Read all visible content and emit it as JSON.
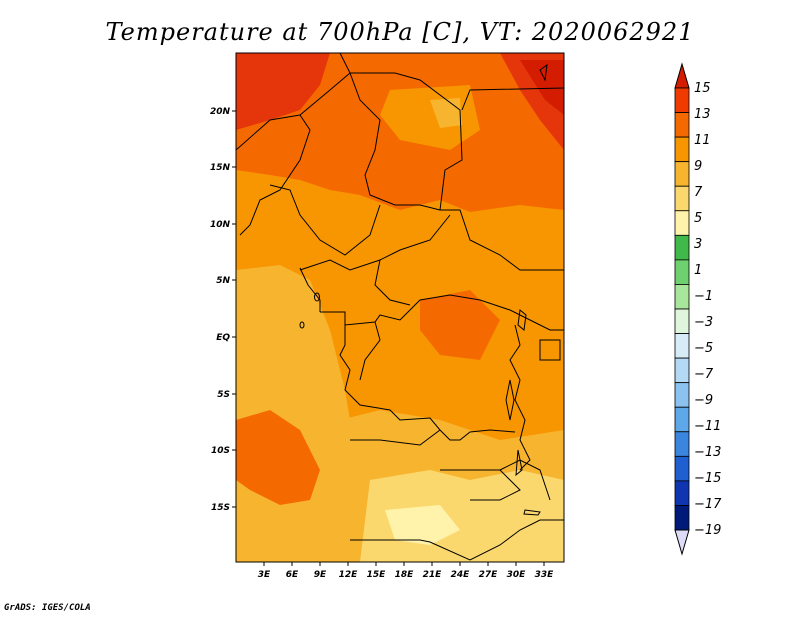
{
  "title": "Temperature at 700hPa [C], VT: 2020062921",
  "credit": "GrADS: IGES/COLA",
  "map": {
    "lat_ticks": [
      "20N",
      "15N",
      "10N",
      "5N",
      "EQ",
      "5S",
      "10S",
      "15S"
    ],
    "lon_ticks": [
      "3E",
      "6E",
      "9E",
      "12E",
      "15E",
      "18E",
      "21E",
      "24E",
      "27E",
      "30E",
      "33E"
    ]
  },
  "colorbar": {
    "labels": [
      "15",
      "13",
      "11",
      "9",
      "7",
      "5",
      "3",
      "1",
      "−1",
      "−3",
      "−5",
      "−7",
      "−9",
      "−11",
      "−13",
      "−15",
      "−17",
      "−19"
    ],
    "colors": [
      "#d41d00",
      "#ef3b00",
      "#f56a00",
      "#f79600",
      "#f7b42f",
      "#fbd86d",
      "#fff3ab",
      "#40b84a",
      "#6fd06f",
      "#a8e69c",
      "#dff5dc",
      "#d8ecf8",
      "#b4d9f5",
      "#8cc2f0",
      "#5ea8ea",
      "#3a86de",
      "#1f5fcf",
      "#0f35b0",
      "#001a7a",
      "#dcdcf7"
    ]
  },
  "colors": {
    "hot_top": "#d41d00",
    "warm": "#f56a00",
    "mid": "#f79600",
    "cool": "#f7b42f",
    "coolest": "#fbd86d"
  }
}
